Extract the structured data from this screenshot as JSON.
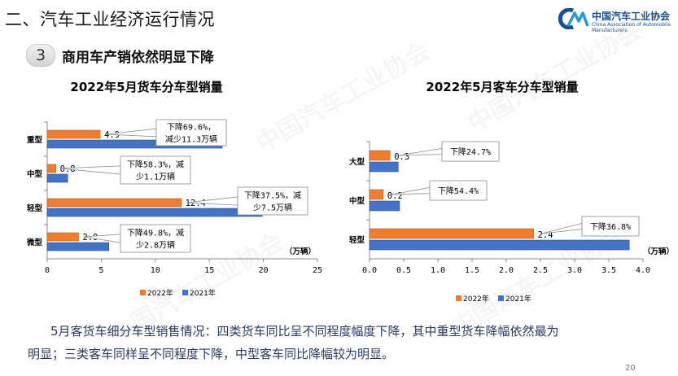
{
  "header": {
    "section_title": "二、汽车工业经济运行情况",
    "subsection_number": "3",
    "subsection_title": "商用车产销依然明显下降"
  },
  "logo": {
    "name_cn": "中国汽车工业协会",
    "name_en": "China Association of Automobile Manufacturers"
  },
  "chart_data": [
    {
      "type": "bar",
      "orientation": "horizontal",
      "title": "2022年5月货车分车型销量",
      "unit": "（万辆）",
      "categories": [
        "重型",
        "中型",
        "轻型",
        "微型"
      ],
      "series": [
        {
          "name": "2022年",
          "color": "#ED7D31",
          "values": [
            4.9,
            0.8,
            12.4,
            2.9
          ],
          "labels": [
            "4.9",
            "0.8",
            "12.4",
            "2.9"
          ]
        },
        {
          "name": "2021年",
          "color": "#4472C4",
          "values": [
            16.2,
            1.9,
            19.9,
            5.7
          ]
        }
      ],
      "xlim": [
        0,
        25
      ],
      "xticks": [
        0,
        5,
        10,
        15,
        20,
        25
      ],
      "annotations": [
        {
          "category": "重型",
          "lines": [
            "下降69.6%，",
            "减少11.3万辆"
          ]
        },
        {
          "category": "中型",
          "lines": [
            "下降58.3%，减",
            "少1.1万辆"
          ]
        },
        {
          "category": "轻型",
          "lines": [
            "下降37.5%，减",
            "少7.5万辆"
          ]
        },
        {
          "category": "微型",
          "lines": [
            "下降49.8%，减",
            "少2.8万辆"
          ]
        }
      ],
      "legend": [
        "2022年",
        "2021年"
      ],
      "legend_position": "bottom"
    },
    {
      "type": "bar",
      "orientation": "horizontal",
      "title": "2022年5月客车分车型销量",
      "unit": "（万辆）",
      "categories": [
        "大型",
        "中型",
        "轻型"
      ],
      "series": [
        {
          "name": "2022年",
          "color": "#ED7D31",
          "values": [
            0.3,
            0.2,
            2.4
          ],
          "labels": [
            "0.3",
            "0.2",
            "2.4"
          ]
        },
        {
          "name": "2021年",
          "color": "#4472C4",
          "values": [
            0.42,
            0.44,
            3.8
          ]
        }
      ],
      "xlim": [
        0,
        4
      ],
      "xticks": [
        "0.0",
        "0.5",
        "1.0",
        "1.5",
        "2.0",
        "2.5",
        "3.0",
        "3.5",
        "4.0"
      ],
      "annotations": [
        {
          "category": "大型",
          "lines": [
            "下降24.7%"
          ]
        },
        {
          "category": "中型",
          "lines": [
            "下降54.4%"
          ]
        },
        {
          "category": "轻型",
          "lines": [
            "下降36.8%"
          ]
        }
      ],
      "legend": [
        "2022年",
        "2021年"
      ],
      "legend_position": "bottom"
    }
  ],
  "summary": {
    "line1": "5月客货车细分车型销售情况：四类货车同比呈不同程度幅度下降，其中重型货车降幅依然最为",
    "line2": "明显；三类客车同样呈不同程度下降，中型客车同比降幅较为明显。"
  },
  "page_number": "20"
}
